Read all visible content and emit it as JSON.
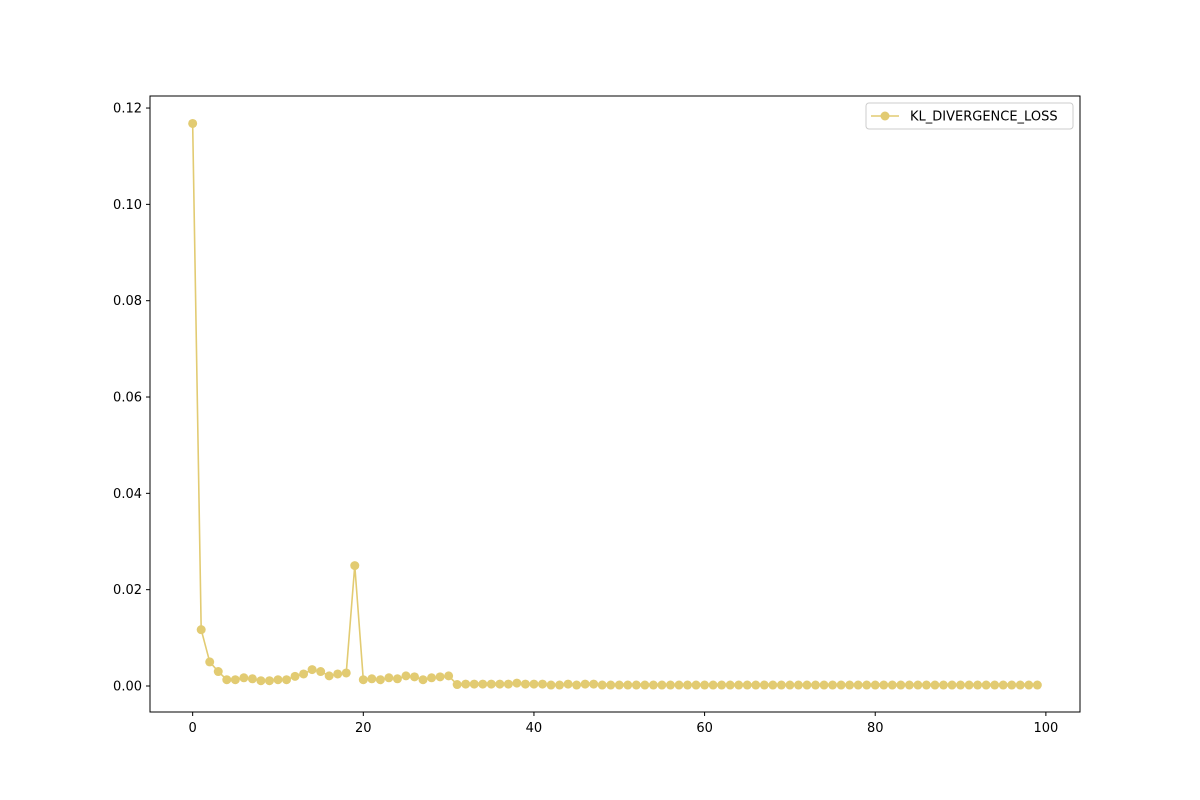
{
  "chart_data": {
    "type": "line",
    "title": "",
    "xlabel": "",
    "ylabel": "",
    "xlim": [
      -5,
      104
    ],
    "ylim": [
      -0.0054,
      0.1225
    ],
    "x_ticks": [
      0,
      20,
      40,
      60,
      80,
      100
    ],
    "y_ticks": [
      0.0,
      0.02,
      0.04,
      0.06,
      0.08,
      0.1,
      0.12
    ],
    "y_tick_labels": [
      "0.00",
      "0.02",
      "0.04",
      "0.06",
      "0.08",
      "0.10",
      "0.12"
    ],
    "x_tick_labels": [
      "0",
      "20",
      "40",
      "60",
      "80",
      "100"
    ],
    "grid": false,
    "legend_position": "top-right",
    "series": [
      {
        "name": "KL_DIVERGENCE_LOSS",
        "color": "#e2cb72",
        "marker": "circle",
        "x": [
          0,
          1,
          2,
          3,
          4,
          5,
          6,
          7,
          8,
          9,
          10,
          11,
          12,
          13,
          14,
          15,
          16,
          17,
          18,
          19,
          20,
          21,
          22,
          23,
          24,
          25,
          26,
          27,
          28,
          29,
          30,
          31,
          32,
          33,
          34,
          35,
          36,
          37,
          38,
          39,
          40,
          41,
          42,
          43,
          44,
          45,
          46,
          47,
          48,
          49,
          50,
          51,
          52,
          53,
          54,
          55,
          56,
          57,
          58,
          59,
          60,
          61,
          62,
          63,
          64,
          65,
          66,
          67,
          68,
          69,
          70,
          71,
          72,
          73,
          74,
          75,
          76,
          77,
          78,
          79,
          80,
          81,
          82,
          83,
          84,
          85,
          86,
          87,
          88,
          89,
          90,
          91,
          92,
          93,
          94,
          95,
          96,
          97,
          98,
          99
        ],
        "y": [
          0.1168,
          0.0117,
          0.005,
          0.003,
          0.0013,
          0.0013,
          0.0017,
          0.0015,
          0.0011,
          0.0011,
          0.0013,
          0.0013,
          0.002,
          0.0025,
          0.0034,
          0.003,
          0.0021,
          0.0025,
          0.0027,
          0.025,
          0.0013,
          0.0015,
          0.0013,
          0.0017,
          0.0015,
          0.0021,
          0.0019,
          0.0013,
          0.0017,
          0.0019,
          0.0021,
          0.0003,
          0.0004,
          0.0004,
          0.0004,
          0.0004,
          0.0004,
          0.0004,
          0.0006,
          0.0004,
          0.0004,
          0.0004,
          0.0002,
          0.0002,
          0.0004,
          0.0002,
          0.0004,
          0.0004,
          0.0002,
          0.0002,
          0.0002,
          0.0002,
          0.0002,
          0.0002,
          0.0002,
          0.0002,
          0.0002,
          0.0002,
          0.0002,
          0.0002,
          0.0002,
          0.0002,
          0.0002,
          0.0002,
          0.0002,
          0.0002,
          0.0002,
          0.0002,
          0.0002,
          0.0002,
          0.0002,
          0.0002,
          0.0002,
          0.0002,
          0.0002,
          0.0002,
          0.0002,
          0.0002,
          0.0002,
          0.0002,
          0.0002,
          0.0002,
          0.0002,
          0.0002,
          0.0002,
          0.0002,
          0.0002,
          0.0002,
          0.0002,
          0.0002,
          0.0002,
          0.0002,
          0.0002,
          0.0002,
          0.0002,
          0.0002,
          0.0002,
          0.0002,
          0.0002,
          0.0002
        ]
      }
    ]
  }
}
